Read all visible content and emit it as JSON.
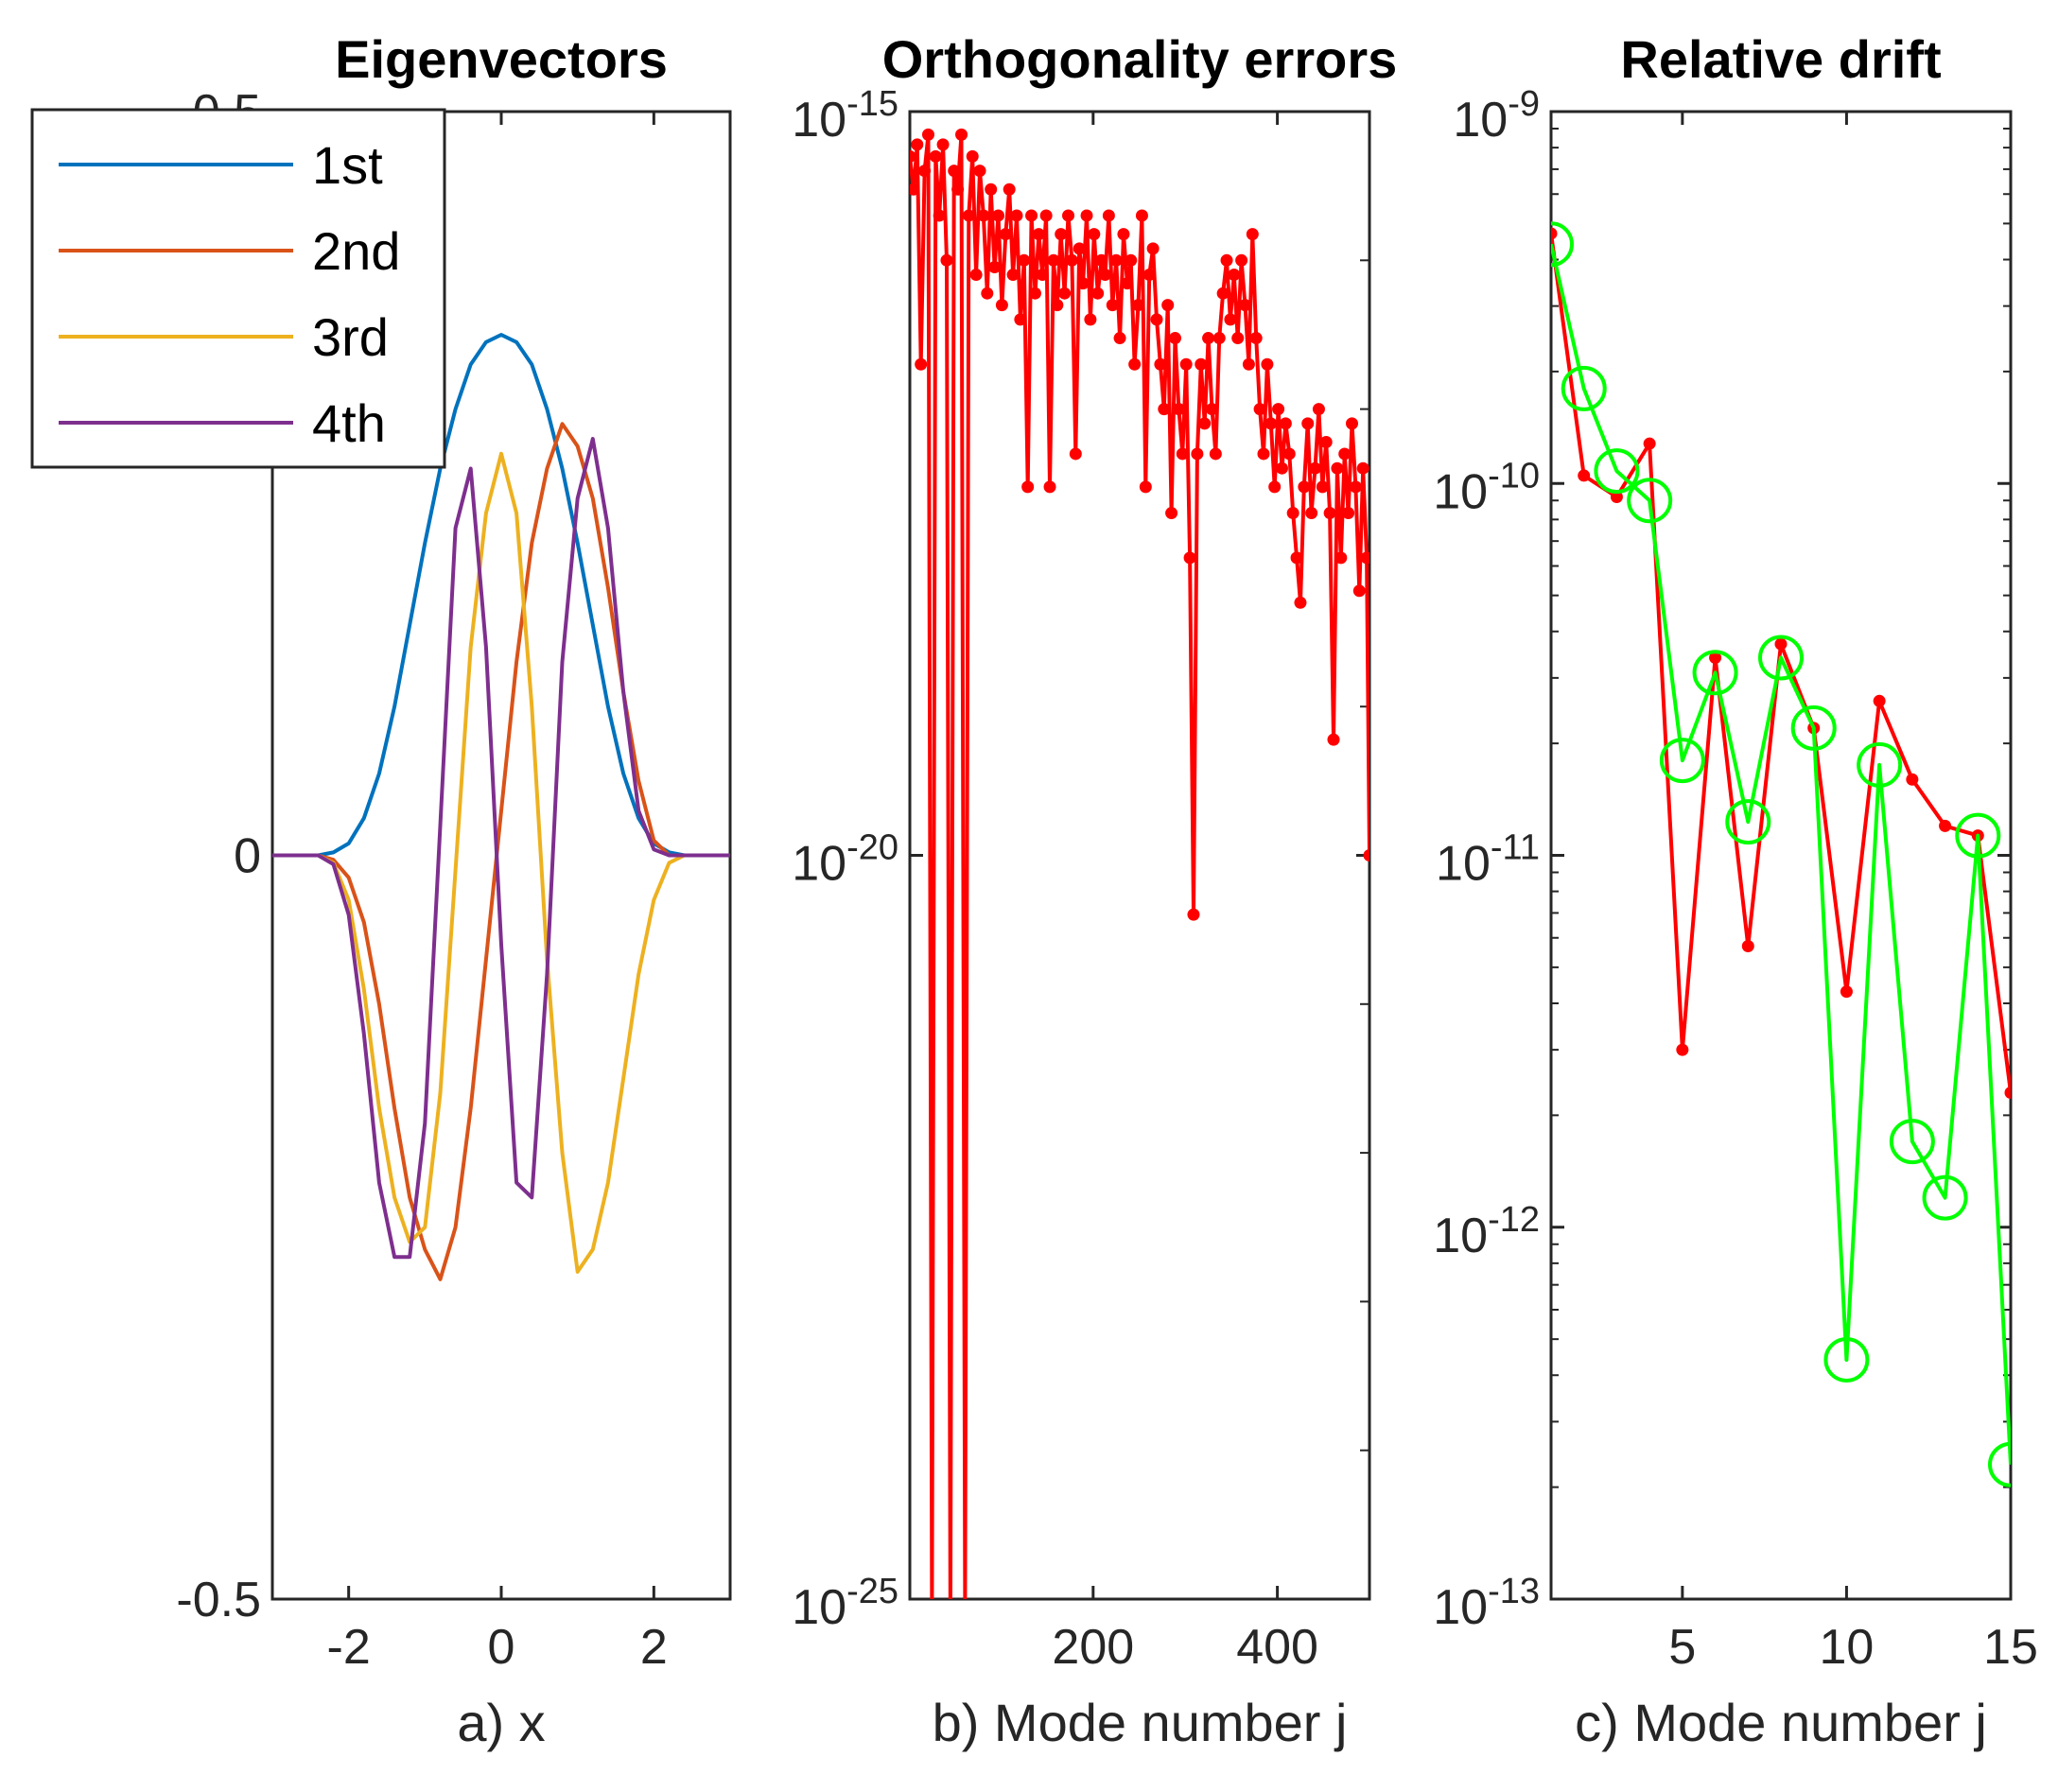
{
  "colors": {
    "first": "#0072BD",
    "second": "#D95319",
    "third": "#EDB120",
    "fourth": "#7E2F8E",
    "errors": "#FF0000",
    "drift_red": "#FF0000",
    "drift_green": "#00FF00",
    "axis": "#262626"
  },
  "chart_data": [
    {
      "type": "line",
      "title": "Eigenvectors",
      "xlabel": "a) x",
      "ylabel": "",
      "xlim": [
        -3,
        3
      ],
      "ylim": [
        -0.5,
        0.5
      ],
      "x_ticks": [
        -2,
        0,
        2
      ],
      "x_tick_labels": [
        "-2",
        "0",
        "2"
      ],
      "y_ticks": [
        -0.5,
        0,
        0.5
      ],
      "y_tick_labels": [
        "-0.5",
        "0",
        "0.5"
      ],
      "legend_position": "top-left",
      "x": [
        -3.0,
        -2.8,
        -2.6,
        -2.4,
        -2.2,
        -2.0,
        -1.8,
        -1.6,
        -1.4,
        -1.2,
        -1.0,
        -0.8,
        -0.6,
        -0.4,
        -0.2,
        0.0,
        0.2,
        0.4,
        0.6,
        0.8,
        1.0,
        1.2,
        1.4,
        1.6,
        1.8,
        2.0,
        2.2,
        2.4,
        2.6,
        2.8,
        3.0
      ],
      "series": [
        {
          "name": "1st",
          "color_key": "first",
          "values": [
            0.0,
            0.0,
            0.0,
            0.0,
            0.002,
            0.008,
            0.025,
            0.055,
            0.1,
            0.155,
            0.21,
            0.26,
            0.3,
            0.33,
            0.345,
            0.35,
            0.345,
            0.33,
            0.3,
            0.26,
            0.21,
            0.155,
            0.1,
            0.055,
            0.025,
            0.008,
            0.002,
            0.0,
            0.0,
            0.0,
            0.0
          ]
        },
        {
          "name": "2nd",
          "color_key": "second",
          "values": [
            0.0,
            0.0,
            0.0,
            0.0,
            -0.003,
            -0.015,
            -0.045,
            -0.1,
            -0.17,
            -0.23,
            -0.265,
            -0.285,
            -0.25,
            -0.17,
            -0.07,
            0.03,
            0.13,
            0.21,
            0.26,
            0.29,
            0.275,
            0.24,
            0.18,
            0.11,
            0.05,
            0.01,
            0.0,
            0.0,
            0.0,
            0.0,
            0.0
          ]
        },
        {
          "name": "3rd",
          "color_key": "third",
          "values": [
            0.0,
            0.0,
            0.0,
            0.0,
            -0.005,
            -0.03,
            -0.09,
            -0.17,
            -0.23,
            -0.26,
            -0.25,
            -0.16,
            -0.01,
            0.14,
            0.23,
            0.27,
            0.23,
            0.1,
            -0.07,
            -0.2,
            -0.28,
            -0.265,
            -0.22,
            -0.15,
            -0.08,
            -0.03,
            -0.005,
            0.0,
            0.0,
            0.0,
            0.0
          ]
        },
        {
          "name": "4th",
          "color_key": "fourth",
          "values": [
            0.0,
            0.0,
            0.0,
            0.0,
            -0.006,
            -0.04,
            -0.12,
            -0.22,
            -0.27,
            -0.27,
            -0.18,
            0.02,
            0.22,
            0.26,
            0.14,
            -0.06,
            -0.22,
            -0.23,
            -0.08,
            0.13,
            0.24,
            0.28,
            0.22,
            0.11,
            0.03,
            0.004,
            0.0,
            0.0,
            0.0,
            0.0,
            0.0
          ]
        }
      ]
    },
    {
      "type": "line",
      "title": "Orthogonality errors",
      "xlabel": "b) Mode number j",
      "ylabel": "",
      "y_scale": "log",
      "xlim": [
        1,
        500
      ],
      "ylim": [
        1e-25,
        1e-15
      ],
      "x_ticks": [
        200,
        400
      ],
      "x_tick_labels": [
        "200",
        "400"
      ],
      "y_ticks": [
        1e-25,
        1e-20,
        1e-15
      ],
      "y_tick_labels": [
        {
          "base": "10",
          "exp": "-25"
        },
        {
          "base": "10",
          "exp": "-20"
        },
        {
          "base": "10",
          "exp": "-15"
        }
      ],
      "series": [
        {
          "name": "",
          "color_key": "errors",
          "marker": "dot",
          "x": [
            1,
            5,
            9,
            13,
            17,
            21,
            25,
            29,
            33,
            37,
            41,
            45,
            49,
            53,
            57,
            61,
            65,
            69,
            73,
            77,
            81,
            85,
            89,
            93,
            97,
            101,
            105,
            109,
            113,
            117,
            121,
            125,
            129,
            133,
            137,
            141,
            145,
            149,
            153,
            157,
            161,
            165,
            169,
            173,
            177,
            181,
            185,
            189,
            193,
            197,
            201,
            205,
            209,
            213,
            217,
            221,
            225,
            229,
            233,
            237,
            241,
            245,
            249,
            253,
            257,
            261,
            265,
            269,
            273,
            277,
            281,
            285,
            289,
            293,
            297,
            301,
            305,
            309,
            313,
            317,
            321,
            325,
            329,
            333,
            337,
            341,
            345,
            349,
            353,
            357,
            361,
            365,
            369,
            373,
            377,
            381,
            385,
            389,
            393,
            397,
            401,
            405,
            409,
            413,
            417,
            421,
            425,
            429,
            433,
            437,
            441,
            445,
            449,
            453,
            457,
            461,
            465,
            469,
            473,
            477,
            481,
            485,
            489,
            493,
            497,
            500
          ],
          "values": [
            5e-16,
            3e-16,
            6e-16,
            2e-17,
            4e-16,
            7e-16,
            8e-26,
            5e-16,
            2e-16,
            6e-16,
            1e-16,
            7e-26,
            4e-16,
            3e-16,
            7e-16,
            9e-26,
            2e-16,
            5e-16,
            8e-17,
            4e-16,
            2e-16,
            6e-17,
            3e-16,
            9e-17,
            2e-16,
            5e-17,
            1.5e-16,
            3e-16,
            8e-17,
            2e-16,
            4e-17,
            1e-16,
            3e-18,
            2e-16,
            6e-17,
            1.5e-16,
            8e-17,
            2e-16,
            3e-18,
            1e-16,
            5e-17,
            1.5e-16,
            6e-17,
            2e-16,
            1e-16,
            5e-18,
            1.2e-16,
            7e-17,
            2e-16,
            4e-17,
            1.5e-16,
            6e-17,
            1e-16,
            8e-17,
            2e-16,
            5e-17,
            1e-16,
            3e-17,
            1.5e-16,
            7e-17,
            1e-16,
            2e-17,
            5e-17,
            2e-16,
            3e-18,
            8e-17,
            1.2e-16,
            4e-17,
            2e-17,
            1e-17,
            5e-17,
            2e-18,
            3e-17,
            1e-17,
            5e-18,
            2e-17,
            1e-18,
            4e-21,
            5e-18,
            2e-17,
            8e-18,
            3e-17,
            1e-17,
            5e-18,
            3e-17,
            6e-17,
            1e-16,
            4e-17,
            8e-17,
            3e-17,
            1e-16,
            5e-17,
            2e-17,
            1.5e-16,
            3e-17,
            1e-17,
            5e-18,
            2e-17,
            8e-18,
            3e-18,
            1e-17,
            4e-18,
            8e-18,
            5e-18,
            2e-18,
            1e-18,
            5e-19,
            3e-18,
            8e-18,
            2e-18,
            4e-18,
            1e-17,
            3e-18,
            6e-18,
            2e-18,
            6e-20,
            4e-18,
            1e-18,
            5e-18,
            2e-18,
            8e-18,
            3e-18,
            6e-19,
            4e-18,
            1e-18,
            1e-20
          ]
        }
      ]
    },
    {
      "type": "line",
      "title": "Relative drift",
      "xlabel": "c) Mode number j",
      "ylabel": "",
      "y_scale": "log",
      "xlim": [
        1,
        15
      ],
      "ylim": [
        1e-13,
        1e-09
      ],
      "x_ticks": [
        5,
        10,
        15
      ],
      "x_tick_labels": [
        "5",
        "10",
        "15"
      ],
      "y_ticks": [
        1e-13,
        1e-12,
        1e-11,
        1e-10,
        1e-09
      ],
      "y_tick_labels": [
        {
          "base": "10",
          "exp": "-13"
        },
        {
          "base": "10",
          "exp": "-12"
        },
        {
          "base": "10",
          "exp": "-11"
        },
        {
          "base": "10",
          "exp": "-10"
        },
        {
          "base": "10",
          "exp": "-9"
        }
      ],
      "x": [
        1,
        2,
        3,
        4,
        5,
        6,
        7,
        8,
        9,
        10,
        11,
        12,
        13,
        14,
        15
      ],
      "series": [
        {
          "name": "",
          "color_key": "drift_red",
          "marker": "dot",
          "values": [
            4.7e-10,
            1.05e-10,
            9.2e-11,
            1.28e-10,
            3e-12,
            3.4e-11,
            5.7e-12,
            3.7e-11,
            2.2e-11,
            4.3e-12,
            2.6e-11,
            1.6e-11,
            1.2e-11,
            1.13e-11,
            2.3e-12
          ]
        },
        {
          "name": "",
          "color_key": "drift_green",
          "marker": "circle",
          "values": [
            4.4e-10,
            1.8e-10,
            1.08e-10,
            9e-11,
            1.8e-11,
            3.1e-11,
            1.23e-11,
            3.4e-11,
            2.2e-11,
            4.4e-13,
            1.75e-11,
            1.7e-12,
            1.2e-12,
            1.13e-11,
            2.3e-13
          ]
        }
      ]
    }
  ]
}
